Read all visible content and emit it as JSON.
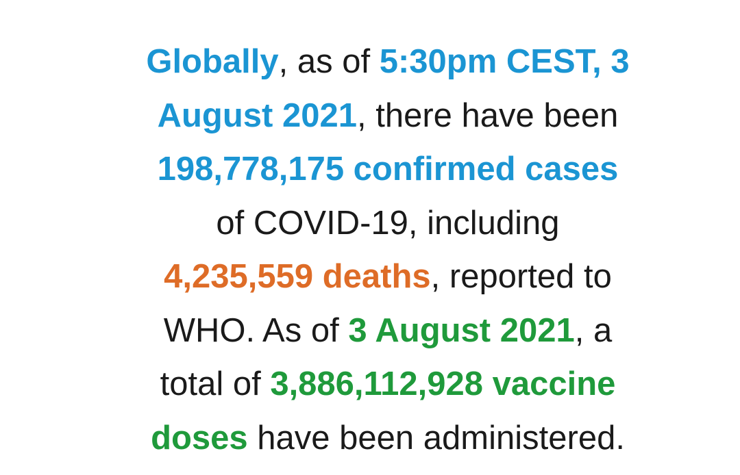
{
  "styles": {
    "blue": {
      "color": "#1b95d3",
      "bold": true
    },
    "orange": {
      "color": "#de6c27",
      "bold": true
    },
    "green": {
      "color": "#1f9a3b",
      "bold": true
    },
    "plain": {
      "color": "#1a1a1a",
      "bold": false
    }
  },
  "paragraph": {
    "lines": [
      {
        "segments": [
          {
            "text": "Globally",
            "style": "blue"
          },
          {
            "text": ", as of ",
            "style": "plain"
          },
          {
            "text": "5:30pm CEST, 3",
            "style": "blue"
          }
        ]
      },
      {
        "segments": [
          {
            "text": "August 2021",
            "style": "blue"
          },
          {
            "text": ", there have been",
            "style": "plain"
          }
        ]
      },
      {
        "segments": [
          {
            "text": "198,778,175 confirmed cases",
            "style": "blue"
          }
        ]
      },
      {
        "segments": [
          {
            "text": "of COVID-19, including",
            "style": "plain"
          }
        ]
      },
      {
        "segments": [
          {
            "text": "4,235,559 deaths",
            "style": "orange"
          },
          {
            "text": ", reported to",
            "style": "plain"
          }
        ]
      },
      {
        "segments": [
          {
            "text": "WHO. As of ",
            "style": "plain"
          },
          {
            "text": "3 August 2021",
            "style": "green"
          },
          {
            "text": ", a",
            "style": "plain"
          }
        ]
      },
      {
        "segments": [
          {
            "text": "total of ",
            "style": "plain"
          },
          {
            "text": "3,886,112,928 vaccine",
            "style": "green"
          }
        ]
      },
      {
        "segments": [
          {
            "text": "doses",
            "style": "green"
          },
          {
            "text": " have been administered.",
            "style": "plain"
          }
        ]
      }
    ]
  }
}
